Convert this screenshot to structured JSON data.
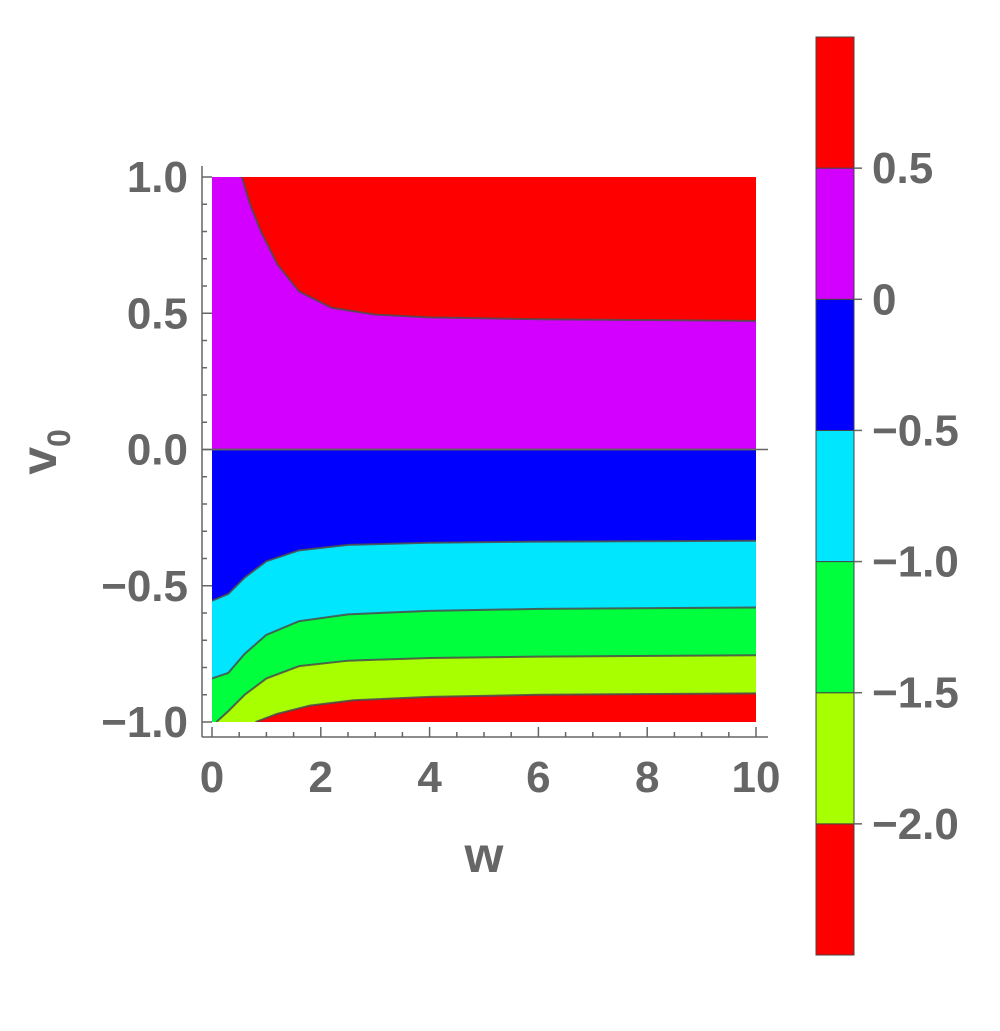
{
  "chart_data": {
    "type": "contour",
    "xlabel": "w",
    "ylabel": "v",
    "ylabel_subscript": "0",
    "xlim": [
      0,
      10
    ],
    "ylim": [
      -1,
      1
    ],
    "x_ticks": [
      {
        "value": 0,
        "label": "0"
      },
      {
        "value": 2,
        "label": "2"
      },
      {
        "value": 4,
        "label": "4"
      },
      {
        "value": 6,
        "label": "6"
      },
      {
        "value": 8,
        "label": "8"
      },
      {
        "value": 10,
        "label": "10"
      }
    ],
    "y_ticks": [
      {
        "value": -1,
        "label": "−1.0"
      },
      {
        "value": -0.5,
        "label": "−0.5"
      },
      {
        "value": 0,
        "label": "0.0"
      },
      {
        "value": 0.5,
        "label": "0.5"
      },
      {
        "value": 1,
        "label": "1.0"
      }
    ],
    "colorbar": {
      "range": [
        -2.5,
        1.0
      ],
      "bands": [
        {
          "from": -2.5,
          "to": -2.0,
          "color": "#ff0000"
        },
        {
          "from": -2.0,
          "to": -1.5,
          "color": "#a8ff00"
        },
        {
          "from": -1.5,
          "to": -1.0,
          "color": "#00ff3c"
        },
        {
          "from": -1.0,
          "to": -0.5,
          "color": "#00e6ff"
        },
        {
          "from": -0.5,
          "to": 0.0,
          "color": "#0000ff"
        },
        {
          "from": 0.0,
          "to": 0.5,
          "color": "#d400ff"
        },
        {
          "from": 0.5,
          "to": 1.0,
          "color": "#ff0000"
        }
      ],
      "ticks": [
        {
          "value": 0.5,
          "label": "0.5"
        },
        {
          "value": 0,
          "label": "0"
        },
        {
          "value": -0.5,
          "label": "−0.5"
        },
        {
          "value": -1.0,
          "label": "−1.0"
        },
        {
          "value": -1.5,
          "label": "−1.5"
        },
        {
          "value": -2.0,
          "label": "−2.0"
        }
      ]
    },
    "contours": [
      {
        "level": 0.5,
        "color_above": "#ff0000",
        "color_below": "#d400ff",
        "points": [
          [
            0.55,
            1.0
          ],
          [
            0.7,
            0.9
          ],
          [
            0.9,
            0.8
          ],
          [
            1.2,
            0.68
          ],
          [
            1.6,
            0.58
          ],
          [
            2.2,
            0.52
          ],
          [
            3,
            0.495
          ],
          [
            4,
            0.485
          ],
          [
            6,
            0.478
          ],
          [
            8,
            0.475
          ],
          [
            10,
            0.472
          ]
        ]
      },
      {
        "level": 0.0,
        "color_above": "#d400ff",
        "color_below": "#0000ff",
        "points": [
          [
            0,
            0.0
          ],
          [
            10,
            0.0
          ]
        ]
      },
      {
        "level": -0.5,
        "color_above": "#0000ff",
        "color_below": "#00e6ff",
        "points": [
          [
            0,
            -0.555
          ],
          [
            0.3,
            -0.53
          ],
          [
            0.6,
            -0.47
          ],
          [
            1.0,
            -0.41
          ],
          [
            1.6,
            -0.37
          ],
          [
            2.5,
            -0.35
          ],
          [
            4,
            -0.342
          ],
          [
            6,
            -0.338
          ],
          [
            10,
            -0.335
          ]
        ]
      },
      {
        "level": -1.0,
        "color_above": "#00e6ff",
        "color_below": "#00ff3c",
        "points": [
          [
            0,
            -0.84
          ],
          [
            0.3,
            -0.82
          ],
          [
            0.6,
            -0.75
          ],
          [
            1.0,
            -0.68
          ],
          [
            1.6,
            -0.63
          ],
          [
            2.5,
            -0.605
          ],
          [
            4,
            -0.592
          ],
          [
            6,
            -0.585
          ],
          [
            10,
            -0.58
          ]
        ]
      },
      {
        "level": -1.5,
        "color_above": "#00ff3c",
        "color_below": "#a8ff00",
        "points": [
          [
            0.08,
            -1.0
          ],
          [
            0.3,
            -0.96
          ],
          [
            0.6,
            -0.9
          ],
          [
            1.0,
            -0.84
          ],
          [
            1.6,
            -0.795
          ],
          [
            2.5,
            -0.775
          ],
          [
            4,
            -0.765
          ],
          [
            6,
            -0.76
          ],
          [
            10,
            -0.755
          ]
        ]
      },
      {
        "level": -2.0,
        "color_above": "#a8ff00",
        "color_below": "#ff0000",
        "points": [
          [
            0.8,
            -1.0
          ],
          [
            1.2,
            -0.97
          ],
          [
            1.8,
            -0.94
          ],
          [
            2.6,
            -0.92
          ],
          [
            4,
            -0.908
          ],
          [
            6,
            -0.9
          ],
          [
            10,
            -0.895
          ]
        ]
      }
    ]
  }
}
